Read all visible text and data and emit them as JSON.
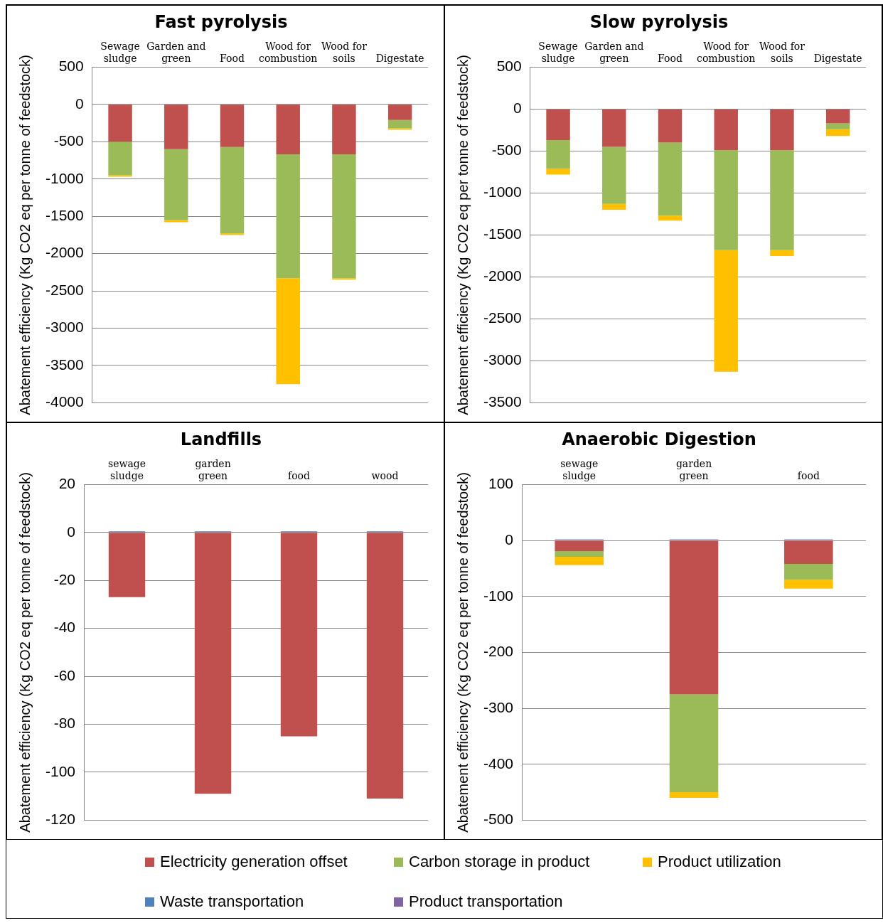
{
  "chart_data": [
    {
      "type": "bar",
      "title": "Fast pyrolysis",
      "ylabel": "Abatement efficiency (Kg CO2 eq per tonne of feedstock)",
      "categories": [
        "Sewage sludge",
        "Garden and green",
        "Food",
        "Wood for combustion",
        "Wood for soils",
        "Digestate"
      ],
      "stacked": true,
      "ylim": [
        -4000,
        500
      ],
      "yticks": [
        -4000,
        -3500,
        -3000,
        -2500,
        -2000,
        -1500,
        -1000,
        -500,
        0,
        500
      ],
      "grid": "y",
      "legend": "bottom",
      "series": [
        {
          "name": "Electricity generation offset",
          "color": "#c0504d",
          "values": [
            -500,
            -600,
            -570,
            -670,
            -670,
            -210
          ]
        },
        {
          "name": "Carbon storage in product",
          "color": "#9bbb59",
          "values": [
            -450,
            -950,
            -1160,
            -1660,
            -1660,
            -110
          ]
        },
        {
          "name": "Product utilization",
          "color": "#ffc000",
          "values": [
            -20,
            -30,
            -20,
            -1420,
            -20,
            -20
          ]
        }
      ]
    },
    {
      "type": "bar",
      "title": "Slow pyrolysis",
      "ylabel": "Abatement efficiency (Kg CO2 eq per tonne of feedstock)",
      "categories": [
        "Sewage sludge",
        "Garden and green",
        "Food",
        "Wood for combustion",
        "Wood for soils",
        "Digestate"
      ],
      "stacked": true,
      "ylim": [
        -3500,
        500
      ],
      "yticks": [
        -3500,
        -3000,
        -2500,
        -2000,
        -1500,
        -1000,
        -500,
        0,
        500
      ],
      "grid": "y",
      "legend": "bottom",
      "series": [
        {
          "name": "Electricity generation offset",
          "color": "#c0504d",
          "values": [
            -370,
            -450,
            -400,
            -490,
            -490,
            -170
          ]
        },
        {
          "name": "Carbon storage in product",
          "color": "#9bbb59",
          "values": [
            -340,
            -680,
            -870,
            -1190,
            -1190,
            -70
          ]
        },
        {
          "name": "Product utilization",
          "color": "#ffc000",
          "values": [
            -70,
            -70,
            -60,
            -1450,
            -70,
            -80
          ]
        }
      ]
    },
    {
      "type": "bar",
      "title": "Landfills",
      "ylabel": "Abatement efficiency (Kg CO2 eq per tonne of feedstock)",
      "categories": [
        "sewage sludge",
        "garden green",
        "food",
        "wood"
      ],
      "stacked": true,
      "ylim": [
        -120,
        20
      ],
      "yticks": [
        -120,
        -100,
        -80,
        -60,
        -40,
        -20,
        0,
        20
      ],
      "grid": "y",
      "legend": "bottom",
      "series": [
        {
          "name": "Electricity generation offset",
          "color": "#c0504d",
          "values": [
            -27,
            -109,
            -85,
            -111
          ]
        },
        {
          "name": "Waste transportation",
          "color": "#4f81bd",
          "values": [
            0.5,
            0.5,
            0.5,
            0.5
          ]
        }
      ]
    },
    {
      "type": "bar",
      "title": "Anaerobic Digestion",
      "ylabel": "Abatement efficiency (Kg CO2 eq per tonne of feedstock)",
      "categories": [
        "sewage sludge",
        "garden green",
        "food"
      ],
      "stacked": true,
      "ylim": [
        -500,
        100
      ],
      "yticks": [
        -500,
        -400,
        -300,
        -200,
        -100,
        0,
        100
      ],
      "grid": "y",
      "legend": "bottom",
      "series": [
        {
          "name": "Electricity generation offset",
          "color": "#c0504d",
          "values": [
            -19,
            -275,
            -42
          ]
        },
        {
          "name": "Carbon storage in product",
          "color": "#9bbb59",
          "values": [
            -10,
            -175,
            -28
          ]
        },
        {
          "name": "Product utilization",
          "color": "#ffc000",
          "values": [
            -15,
            -10,
            -16
          ]
        },
        {
          "name": "Waste transportation",
          "color": "#4f81bd",
          "values": [
            1,
            1,
            1
          ]
        },
        {
          "name": "Product transportation",
          "color": "#8064a2",
          "values": [
            1,
            1,
            1
          ]
        }
      ]
    }
  ]
}
